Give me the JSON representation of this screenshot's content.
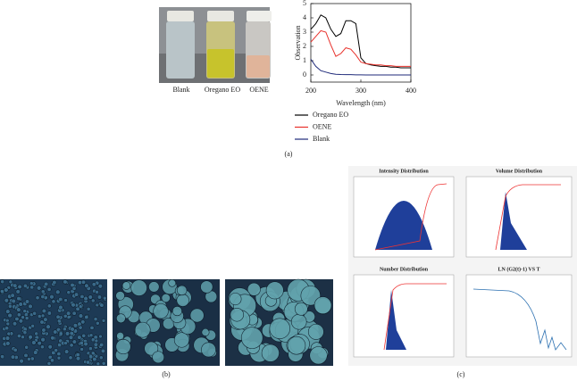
{
  "chart_data": {
    "type": "line",
    "xlabel": "Wavelength (nm)",
    "ylabel": "Observation",
    "x": [
      200,
      210,
      220,
      230,
      240,
      250,
      260,
      270,
      280,
      290,
      300,
      310,
      320,
      330,
      340,
      350,
      360,
      370,
      380,
      390,
      400
    ],
    "series": [
      {
        "name": "Oregano EO",
        "color": "#000000",
        "values": [
          3.2,
          3.6,
          4.2,
          4.0,
          3.2,
          2.7,
          2.9,
          3.8,
          3.8,
          3.6,
          1.2,
          0.8,
          0.7,
          0.65,
          0.6,
          0.6,
          0.55,
          0.55,
          0.5,
          0.5,
          0.5
        ]
      },
      {
        "name": "OENE",
        "color": "#e8302a",
        "values": [
          2.3,
          2.7,
          3.1,
          3.0,
          2.1,
          1.3,
          1.5,
          1.9,
          1.8,
          1.4,
          0.9,
          0.8,
          0.75,
          0.7,
          0.7,
          0.65,
          0.65,
          0.6,
          0.6,
          0.6,
          0.6
        ]
      },
      {
        "name": "Blank",
        "color": "#1f2a7a",
        "values": [
          1.1,
          0.6,
          0.3,
          0.2,
          0.1,
          0.05,
          0.03,
          0.02,
          0.02,
          0.01,
          0.01,
          0,
          0,
          0,
          0,
          0,
          0,
          0,
          0,
          0,
          0
        ]
      }
    ],
    "xlim": [
      200,
      400
    ],
    "xticks": [
      200,
      300,
      400
    ],
    "ylim": [
      -0.5,
      5
    ],
    "yticks": [
      0,
      1,
      2,
      3,
      4,
      5
    ]
  },
  "photo": {
    "labels": [
      "Blank",
      "Oregano EO",
      "OENE"
    ]
  },
  "dls": {
    "titles": [
      "Intensity Distribution",
      "Volume Distribution",
      "Number Distribution",
      "LN (G2(t)-1) VS T"
    ]
  },
  "panels": [
    "(a)",
    "(b)",
    "(c)"
  ]
}
